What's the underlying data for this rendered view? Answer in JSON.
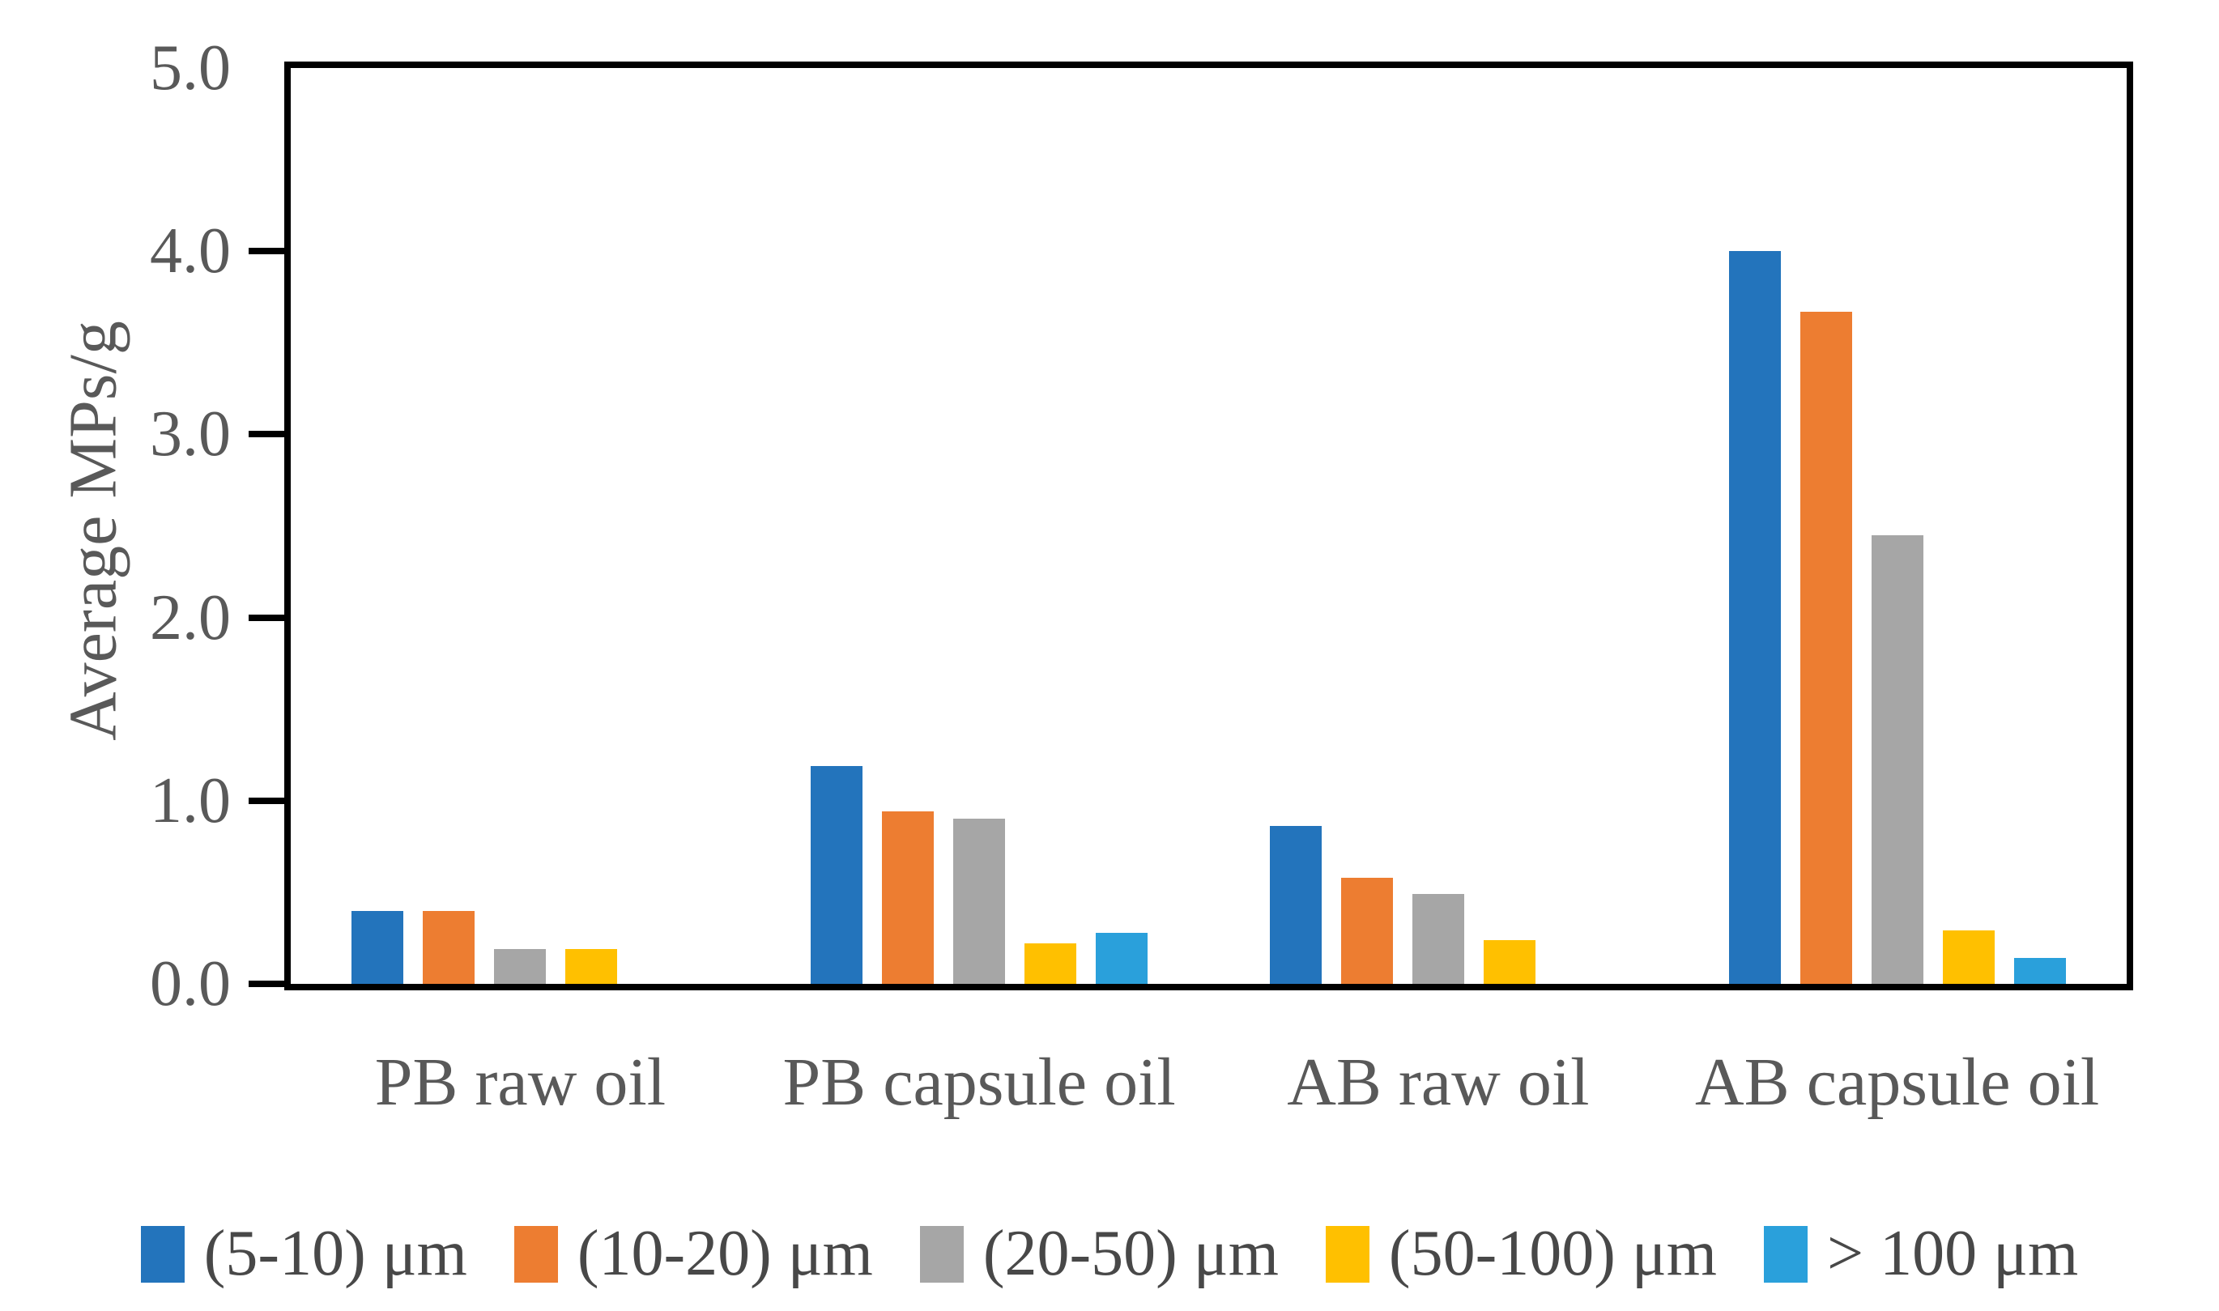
{
  "chart_data": {
    "type": "bar",
    "title": "",
    "ylabel": "Average MPs/g",
    "xlabel": "",
    "ylim": [
      0,
      5
    ],
    "ytick_step": 1.0,
    "ytick_labels": [
      "0.0",
      "1.0",
      "2.0",
      "3.0",
      "4.0",
      "5.0"
    ],
    "grid": false,
    "legend_position": "bottom",
    "categories": [
      "PB raw oil",
      "PB capsule oil",
      "AB raw oil",
      "AB capsule oil"
    ],
    "series": [
      {
        "name": "(5-10) μm",
        "color": "#2374BC",
        "values": [
          0.4,
          1.19,
          0.86,
          4.0
        ]
      },
      {
        "name": "(10-20) μm",
        "color": "#ED7D31",
        "values": [
          0.4,
          0.94,
          0.58,
          3.67
        ]
      },
      {
        "name": "(20-50) μm",
        "color": "#A6A6A6",
        "values": [
          0.19,
          0.9,
          0.49,
          2.45
        ]
      },
      {
        "name": "(50-100) μm",
        "color": "#FFC000",
        "values": [
          0.19,
          0.22,
          0.24,
          0.29
        ]
      },
      {
        "name": "> 100 μm",
        "color": "#2AA0DB",
        "values": [
          0.0,
          0.28,
          0.0,
          0.14
        ]
      }
    ]
  },
  "colors": {
    "axis": "#000000",
    "text": "#595959",
    "background": "#FFFFFF"
  }
}
